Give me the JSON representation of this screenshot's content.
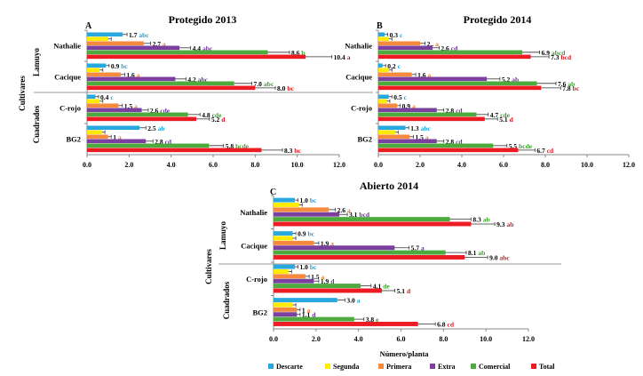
{
  "legend": [
    {
      "name": "Descarte",
      "color": "#29A8E0"
    },
    {
      "name": "Segunda",
      "color": "#FFEB00"
    },
    {
      "name": "Primera",
      "color": "#F58A3C"
    },
    {
      "name": "Extra",
      "color": "#7B3FA0"
    },
    {
      "name": "Comercial",
      "color": "#4DAA3C"
    },
    {
      "name": "Total",
      "color": "#ED1C24"
    }
  ],
  "chart_data": [
    {
      "type": "bar",
      "orientation": "horizontal",
      "panel": "A",
      "title": "Protegido 2013",
      "ylabel": "Cultivares",
      "groups": [
        "Lamuyo",
        "Cuadrados"
      ],
      "categories": [
        "Nathalie",
        "Cacique",
        "C-rojo",
        "BG2"
      ],
      "category_groups": [
        "Lamuyo",
        "Lamuyo",
        "Cuadrados",
        "Cuadrados"
      ],
      "xlim": [
        0,
        12
      ],
      "xticks": [
        "0.0",
        "2.0",
        "4.0",
        "6.0",
        "8.0",
        "10.0",
        "12.0"
      ],
      "series": [
        {
          "name": "Descarte",
          "values": [
            1.7,
            0.9,
            0.4,
            2.5
          ],
          "labels": [
            "1.7",
            "0.9",
            "0.4",
            "2.5"
          ],
          "letters": [
            "abc",
            "bc",
            "c",
            "ab"
          ]
        },
        {
          "name": "Segunda",
          "values": [
            1.0,
            0.6,
            0.6,
            0.7
          ],
          "labels": [
            "",
            "",
            "",
            ""
          ],
          "letters": [
            "",
            "",
            "",
            ""
          ]
        },
        {
          "name": "Primera",
          "values": [
            2.7,
            1.6,
            1.5,
            1.0
          ],
          "labels": [
            "2.7",
            "1.6",
            "1.5",
            "1"
          ],
          "letters": [
            "a",
            "a",
            "a",
            "a"
          ]
        },
        {
          "name": "Extra",
          "values": [
            4.4,
            4.2,
            2.6,
            2.8
          ],
          "labels": [
            "4.4",
            "4.2",
            "2.6",
            "2.8"
          ],
          "letters": [
            "abc",
            "abc",
            "cde",
            "cd"
          ]
        },
        {
          "name": "Comercial",
          "values": [
            8.6,
            7.0,
            4.8,
            5.8
          ],
          "labels": [
            "8.6",
            "7.0",
            "4.8",
            "5.8"
          ],
          "letters": [
            "b",
            "abc",
            "cde",
            "bcde"
          ]
        },
        {
          "name": "Total",
          "values": [
            10.4,
            8.0,
            5.2,
            8.3
          ],
          "labels": [
            "10.4",
            "8.0",
            "5.2",
            "8.3"
          ],
          "letters": [
            "a",
            "bc",
            "d",
            "bc"
          ]
        }
      ]
    },
    {
      "type": "bar",
      "orientation": "horizontal",
      "panel": "B",
      "title": "Protegido  2014",
      "categories": [
        "Nathalie",
        "Cacique",
        "C-rojo",
        "BG2"
      ],
      "xlim": [
        0,
        12
      ],
      "xticks": [
        "0.0",
        "2.0",
        "4.0",
        "6.0",
        "8.0",
        "10.0",
        "12.0"
      ],
      "series": [
        {
          "name": "Descarte",
          "values": [
            0.3,
            0.2,
            0.5,
            1.3
          ],
          "labels": [
            "0.3",
            "0.2",
            "0.5",
            "1.3"
          ],
          "letters": [
            "c",
            "c",
            "c",
            "abc"
          ]
        },
        {
          "name": "Segunda",
          "values": [
            0.5,
            0.5,
            0.4,
            0.8
          ],
          "labels": [
            "",
            "",
            "",
            ""
          ],
          "letters": [
            "",
            "",
            "",
            ""
          ]
        },
        {
          "name": "Primera",
          "values": [
            2.0,
            1.6,
            0.9,
            1.5
          ],
          "labels": [
            "2..",
            "1.6",
            "0.9",
            "1.5"
          ],
          "letters": [
            "a",
            "a",
            "a",
            "a"
          ]
        },
        {
          "name": "Extra",
          "values": [
            2.6,
            5.2,
            2.8,
            2.8
          ],
          "labels": [
            "2.6",
            "5.2",
            "2.8",
            "2.8"
          ],
          "letters": [
            "cd",
            "ab",
            "cd",
            "cd"
          ]
        },
        {
          "name": "Comercial",
          "values": [
            6.9,
            7.6,
            4.7,
            5.5
          ],
          "labels": [
            "6.9",
            "7.6",
            "4.7",
            "5.5"
          ],
          "letters": [
            "abcd",
            "ab",
            "cde",
            "bcde"
          ]
        },
        {
          "name": "Total",
          "values": [
            7.3,
            7.8,
            5.1,
            6.7
          ],
          "labels": [
            "7.3",
            "7.8",
            "5.1",
            "6.7"
          ],
          "letters": [
            "bcd",
            "bc",
            "d",
            "cd"
          ]
        }
      ]
    },
    {
      "type": "bar",
      "orientation": "horizontal",
      "panel": "C",
      "title": "Abierto  2014",
      "ylabel": "Cultivares",
      "xlabel": "Número/planta",
      "groups": [
        "Lamuyo",
        "Cuadrados"
      ],
      "categories": [
        "Nathalie",
        "Cacique",
        "C-rojo",
        "BG2"
      ],
      "category_groups": [
        "Lamuyo",
        "Lamuyo",
        "Cuadrados",
        "Cuadrados"
      ],
      "xlim": [
        0,
        12
      ],
      "xticks": [
        "0.0",
        "2.0",
        "4.0",
        "6.0",
        "8.0",
        "10.0",
        "12.0"
      ],
      "series": [
        {
          "name": "Descarte",
          "values": [
            1.0,
            0.9,
            1.0,
            3.0
          ],
          "labels": [
            "1.0",
            "0.9",
            "1.0",
            "3.0"
          ],
          "letters": [
            "bc",
            "bc",
            "bc",
            "a"
          ]
        },
        {
          "name": "Segunda",
          "values": [
            1.2,
            0.9,
            0.7,
            0.9
          ],
          "labels": [
            "",
            "",
            "",
            ""
          ],
          "letters": [
            "",
            "",
            "",
            ""
          ]
        },
        {
          "name": "Primera",
          "values": [
            2.6,
            1.9,
            1.5,
            1.1
          ],
          "labels": [
            "2.6",
            "1.9",
            "1.5",
            "1"
          ],
          "letters": [
            "a",
            "a",
            "a",
            "a"
          ]
        },
        {
          "name": "Extra",
          "values": [
            3.1,
            5.7,
            1.9,
            1.1
          ],
          "labels": [
            "3.1",
            "5.7",
            "1.9",
            "1.1"
          ],
          "letters": [
            "bcd",
            "a",
            "d",
            "d"
          ]
        },
        {
          "name": "Comercial",
          "values": [
            8.3,
            8.1,
            4.1,
            3.8
          ],
          "labels": [
            "8.3",
            "8.1",
            "4.1",
            "3.8"
          ],
          "letters": [
            "ab",
            "ab",
            "de",
            "e"
          ]
        },
        {
          "name": "Total",
          "values": [
            9.3,
            9.0,
            5.1,
            6.8
          ],
          "labels": [
            "9.3",
            "9.0",
            "5.1",
            "6.8"
          ],
          "letters": [
            "ab",
            "abc",
            "d",
            "cd"
          ]
        }
      ]
    }
  ]
}
